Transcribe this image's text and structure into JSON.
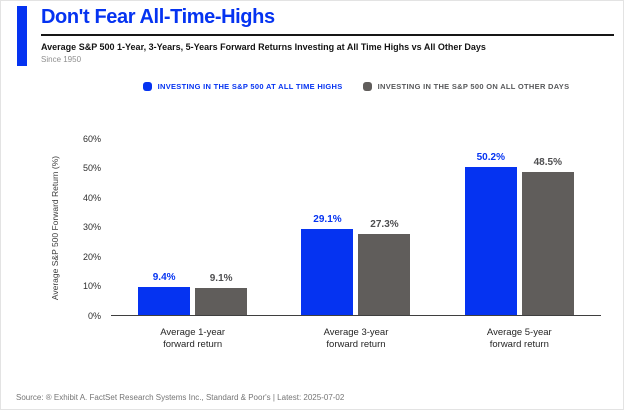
{
  "header": {
    "title": "Don't Fear All-Time-Highs",
    "subtitle": "Average S&P 500 1-Year, 3-Years, 5-Years Forward Returns Investing at All Time Highs vs All Other Days",
    "since": "Since 1950"
  },
  "legend": [
    {
      "label": "INVESTING IN THE S&P 500 AT ALL TIME HIGHS",
      "color": "#0533f1",
      "text_color": "#0533f1"
    },
    {
      "label": "INVESTING IN THE S&P 500 ON ALL OTHER DAYS",
      "color": "#605d5b",
      "text_color": "#57585a"
    }
  ],
  "chart_data": {
    "type": "bar",
    "title": "Don't Fear All-Time-Highs",
    "subtitle": "Average S&P 500 1-Year, 3-Years, 5-Years Forward Returns Investing at All Time Highs vs All Other Days",
    "categories": [
      "Average 1-year forward return",
      "Average 3-year forward return",
      "Average 5-year forward return"
    ],
    "category_lines": [
      [
        "Average 1-year",
        "forward return"
      ],
      [
        "Average 3-year",
        "forward return"
      ],
      [
        "Average 5-year",
        "forward return"
      ]
    ],
    "series": [
      {
        "name": "Investing in the S&P 500 at all time highs",
        "values": [
          9.4,
          29.1,
          50.2
        ],
        "color": "#0533f1",
        "label_color": "#0533f1"
      },
      {
        "name": "Investing in the S&P 500 on all other days",
        "values": [
          9.1,
          27.3,
          48.5
        ],
        "color": "#605d5b",
        "label_color": "#4e4e50"
      }
    ],
    "xlabel": "",
    "ylabel": "Average S&P 500 Forward Return (%)",
    "ylim": [
      0,
      60
    ],
    "yticks": [
      0,
      10,
      20,
      30,
      40,
      50,
      60
    ],
    "ytick_suffix": "%",
    "grid": false,
    "legend_position": "top",
    "value_label_format": "0.1%"
  },
  "footer": {
    "source": "Source: ® Exhibit A. FactSet Research Systems Inc., Standard & Poor's | Latest: 2025-07-02"
  }
}
